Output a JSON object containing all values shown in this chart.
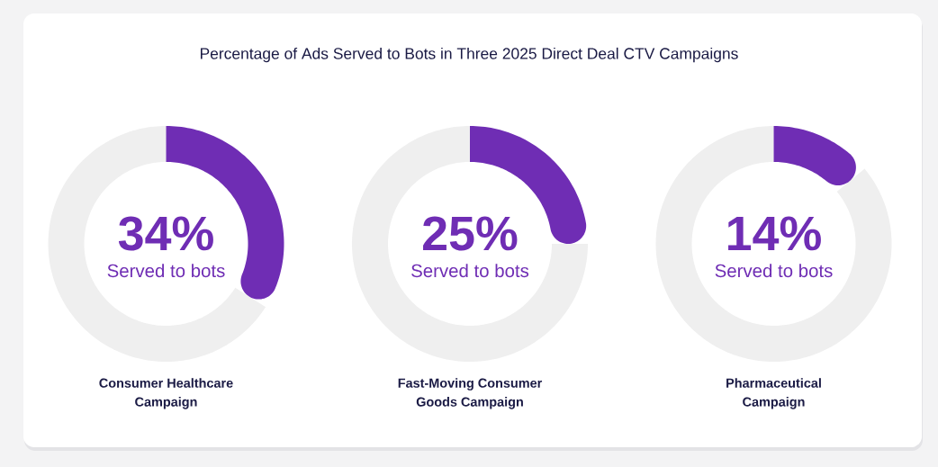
{
  "chart_data": [
    {
      "type": "donut",
      "title": "Percentage of Ads Served to Bots in Three 2025 Direct Deal CTV Campaigns",
      "xlabel": "Consumer Healthcare Campaign",
      "categories": [
        "Served to bots",
        null
      ],
      "values": [
        34,
        66
      ],
      "colors": [
        "#6f2db4",
        "#efefef"
      ],
      "value_labels": [
        "34%",
        null
      ]
    },
    {
      "type": "donut",
      "xlabel": "Fast-Moving Consumer Goods Campaign",
      "categories": [
        "Served to bots",
        null
      ],
      "values": [
        25,
        75
      ],
      "colors": [
        "#6f2db4",
        "#efefef"
      ],
      "value_labels": [
        "25%",
        null
      ]
    },
    {
      "type": "donut",
      "xlabel": "Pharmaceutical Campaign",
      "categories": [
        "Served to bots",
        null
      ],
      "values": [
        14,
        86
      ],
      "colors": [
        "#6f2db4",
        "#efefef"
      ],
      "value_labels": [
        "14%",
        null
      ]
    }
  ]
}
